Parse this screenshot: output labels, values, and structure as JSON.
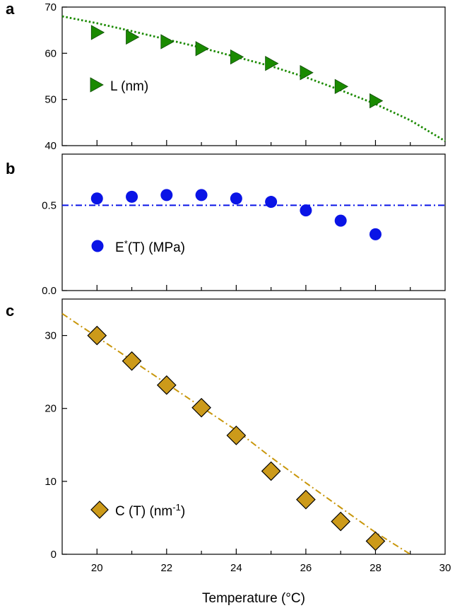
{
  "chart_data": [
    {
      "panel": "a",
      "type": "scatter",
      "xlim": [
        19,
        30
      ],
      "ylim": [
        40,
        70
      ],
      "yticks": [
        40,
        50,
        60,
        70
      ],
      "legend": "L (nm)",
      "legend_position": "center-left",
      "marker": "triangle-right",
      "marker_color": "#1a8a00",
      "series": [
        {
          "x": [
            20,
            21,
            22,
            23,
            24,
            25,
            26,
            27,
            28
          ],
          "y": [
            64.5,
            63.5,
            62.5,
            61.0,
            59.2,
            57.8,
            55.8,
            52.8,
            49.7
          ]
        }
      ],
      "fit": {
        "style": "dotted",
        "color": "#1a8a00",
        "x": [
          19,
          20,
          21,
          22,
          23,
          24,
          25,
          26,
          27,
          28,
          29,
          30
        ],
        "y": [
          68.0,
          66.5,
          64.8,
          63.0,
          61.2,
          59.2,
          57.2,
          54.8,
          52.0,
          49.0,
          45.5,
          41.0
        ]
      }
    },
    {
      "panel": "b",
      "type": "scatter",
      "xlim": [
        19,
        30
      ],
      "ylim": [
        0,
        0.8
      ],
      "yticks": [
        0.0,
        0.5
      ],
      "legend": "E*(T) (MPa)",
      "legend_position": "center-left",
      "marker": "circle",
      "marker_color": "#0a14e6",
      "series": [
        {
          "x": [
            20,
            21,
            22,
            23,
            24,
            25,
            26,
            27,
            28
          ],
          "y": [
            0.54,
            0.55,
            0.56,
            0.56,
            0.54,
            0.52,
            0.47,
            0.41,
            0.33
          ]
        }
      ],
      "fit": {
        "style": "dash-dot",
        "color": "#0a14e6",
        "x": [
          19,
          30
        ],
        "y": [
          0.5,
          0.5
        ]
      }
    },
    {
      "panel": "c",
      "type": "scatter",
      "xlim": [
        19,
        30
      ],
      "ylim": [
        0,
        35
      ],
      "yticks": [
        0,
        10,
        20,
        30
      ],
      "xticks": [
        20,
        22,
        24,
        26,
        28,
        30
      ],
      "xlabel": "Temperature (°C)",
      "legend": "C (T) (nm-1)",
      "legend_position": "bottom-left",
      "marker": "diamond",
      "marker_color": "#cc9a1a",
      "series": [
        {
          "x": [
            20,
            21,
            22,
            23,
            24,
            25,
            26,
            27,
            28
          ],
          "y": [
            30.0,
            26.5,
            23.2,
            20.1,
            16.3,
            11.4,
            7.5,
            4.5,
            1.8
          ]
        }
      ],
      "fit": {
        "style": "dash-dot",
        "color": "#c8960a",
        "x": [
          19,
          20,
          21,
          22,
          23,
          24,
          25,
          26,
          27,
          28,
          29
        ],
        "y": [
          33.0,
          29.8,
          26.6,
          23.4,
          20.2,
          17.0,
          13.3,
          9.8,
          6.4,
          3.0,
          0.0
        ]
      }
    }
  ]
}
